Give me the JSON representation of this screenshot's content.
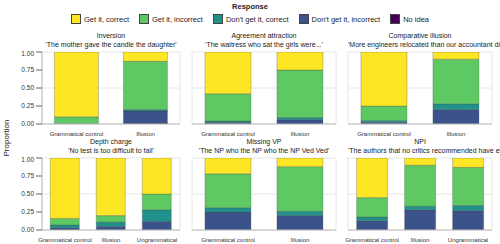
{
  "chart_data": {
    "type": "bar",
    "stacked": true,
    "legend": "top",
    "legend_title": "Response",
    "y_label": "Proportion",
    "ylim": [
      0,
      1
    ],
    "yticks": [
      {
        "value": 0,
        "label": "0.00"
      },
      {
        "value": 0.25,
        "label": "0.25"
      },
      {
        "value": 0.5,
        "label": "0.50"
      },
      {
        "value": 0.75,
        "label": "0.75"
      },
      {
        "value": 1,
        "label": "1.00"
      }
    ],
    "grid": true,
    "series": [
      {
        "name": "Get it, correct",
        "color": "#fde725"
      },
      {
        "name": "Get it, incorrect",
        "color": "#5ec962"
      },
      {
        "name": "Don't get it, correct",
        "color": "#21918c"
      },
      {
        "name": "Don't get it, incorrect",
        "color": "#3b528b"
      },
      {
        "name": "No idea",
        "color": "#440154"
      }
    ],
    "panels": [
      {
        "title": "Inversion",
        "subtitle": "'The mother gave the candle the daughter'",
        "categories": [
          "Grammatical control",
          "Illusion"
        ],
        "series": [
          {
            "name": "Get it, correct",
            "values": [
              0.9,
              0.13
            ]
          },
          {
            "name": "Get it, incorrect",
            "values": [
              0.095,
              0.67
            ]
          },
          {
            "name": "Don't get it, correct",
            "values": [
              0.005,
              0.02
            ]
          },
          {
            "name": "Don't get it, incorrect",
            "values": [
              0,
              0.17
            ]
          },
          {
            "name": "No idea",
            "values": [
              0,
              0.01
            ]
          }
        ]
      },
      {
        "title": "Agreement attraction",
        "subtitle": "'The waitress who sat the girls were...'",
        "categories": [
          "Grammatical control",
          "Illusion"
        ],
        "series": [
          {
            "name": "Get it, correct",
            "values": [
              0.58,
              0.25
            ]
          },
          {
            "name": "Get it, incorrect",
            "values": [
              0.38,
              0.66
            ]
          },
          {
            "name": "Don't get it, correct",
            "values": [
              0.02,
              0.03
            ]
          },
          {
            "name": "Don't get it, incorrect",
            "values": [
              0.02,
              0.06
            ]
          },
          {
            "name": "No idea",
            "values": [
              0,
              0
            ]
          }
        ]
      },
      {
        "title": "Comparative illusion",
        "subtitle": "'More engineers relocated than our accountant did'",
        "categories": [
          "Grammatical control",
          "Illusion"
        ],
        "series": [
          {
            "name": "Get it, correct",
            "values": [
              0.75,
              0.1
            ]
          },
          {
            "name": "Get it, incorrect",
            "values": [
              0.2,
              0.62
            ]
          },
          {
            "name": "Don't get it, correct",
            "values": [
              0.03,
              0.08
            ]
          },
          {
            "name": "Don't get it, incorrect",
            "values": [
              0.02,
              0.2
            ]
          },
          {
            "name": "No idea",
            "values": [
              0,
              0
            ]
          }
        ]
      },
      {
        "title": "Depth charge",
        "subtitle": "'No test is too difficult to fail'",
        "categories": [
          "Grammatical control",
          "Illusion",
          "Ungrammatical control"
        ],
        "series": [
          {
            "name": "Get it, correct",
            "values": [
              0.84,
              0.8,
              0.5
            ]
          },
          {
            "name": "Get it, incorrect",
            "values": [
              0.09,
              0.09,
              0.22
            ]
          },
          {
            "name": "Don't get it, correct",
            "values": [
              0.04,
              0.06,
              0.16
            ]
          },
          {
            "name": "Don't get it, incorrect",
            "values": [
              0.03,
              0.05,
              0.12
            ]
          },
          {
            "name": "No idea",
            "values": [
              0,
              0,
              0
            ]
          }
        ]
      },
      {
        "title": "Missing VP",
        "subtitle": "'The NP who the NP who the NP Ved Ved'",
        "categories": [
          "Grammatical control",
          "Illusion"
        ],
        "series": [
          {
            "name": "Get it, correct",
            "values": [
              0.22,
              0.12
            ]
          },
          {
            "name": "Get it, incorrect",
            "values": [
              0.47,
              0.62
            ]
          },
          {
            "name": "Don't get it, correct",
            "values": [
              0.06,
              0.06
            ]
          },
          {
            "name": "Don't get it, incorrect",
            "values": [
              0.25,
              0.2
            ]
          },
          {
            "name": "No idea",
            "values": [
              0,
              0
            ]
          }
        ]
      },
      {
        "title": "NPI",
        "subtitle": "'The authors that no critics recommended have ever...'",
        "categories": [
          "Grammatical control",
          "Illusion",
          "Ungrammatical control"
        ],
        "series": [
          {
            "name": "Get it, correct",
            "values": [
              0.55,
              0.1,
              0.13
            ]
          },
          {
            "name": "Get it, incorrect",
            "values": [
              0.27,
              0.57,
              0.53
            ]
          },
          {
            "name": "Don't get it, correct",
            "values": [
              0.05,
              0.05,
              0.07
            ]
          },
          {
            "name": "Don't get it, incorrect",
            "values": [
              0.13,
              0.28,
              0.27
            ]
          },
          {
            "name": "No idea",
            "values": [
              0,
              0,
              0
            ]
          }
        ]
      }
    ]
  }
}
